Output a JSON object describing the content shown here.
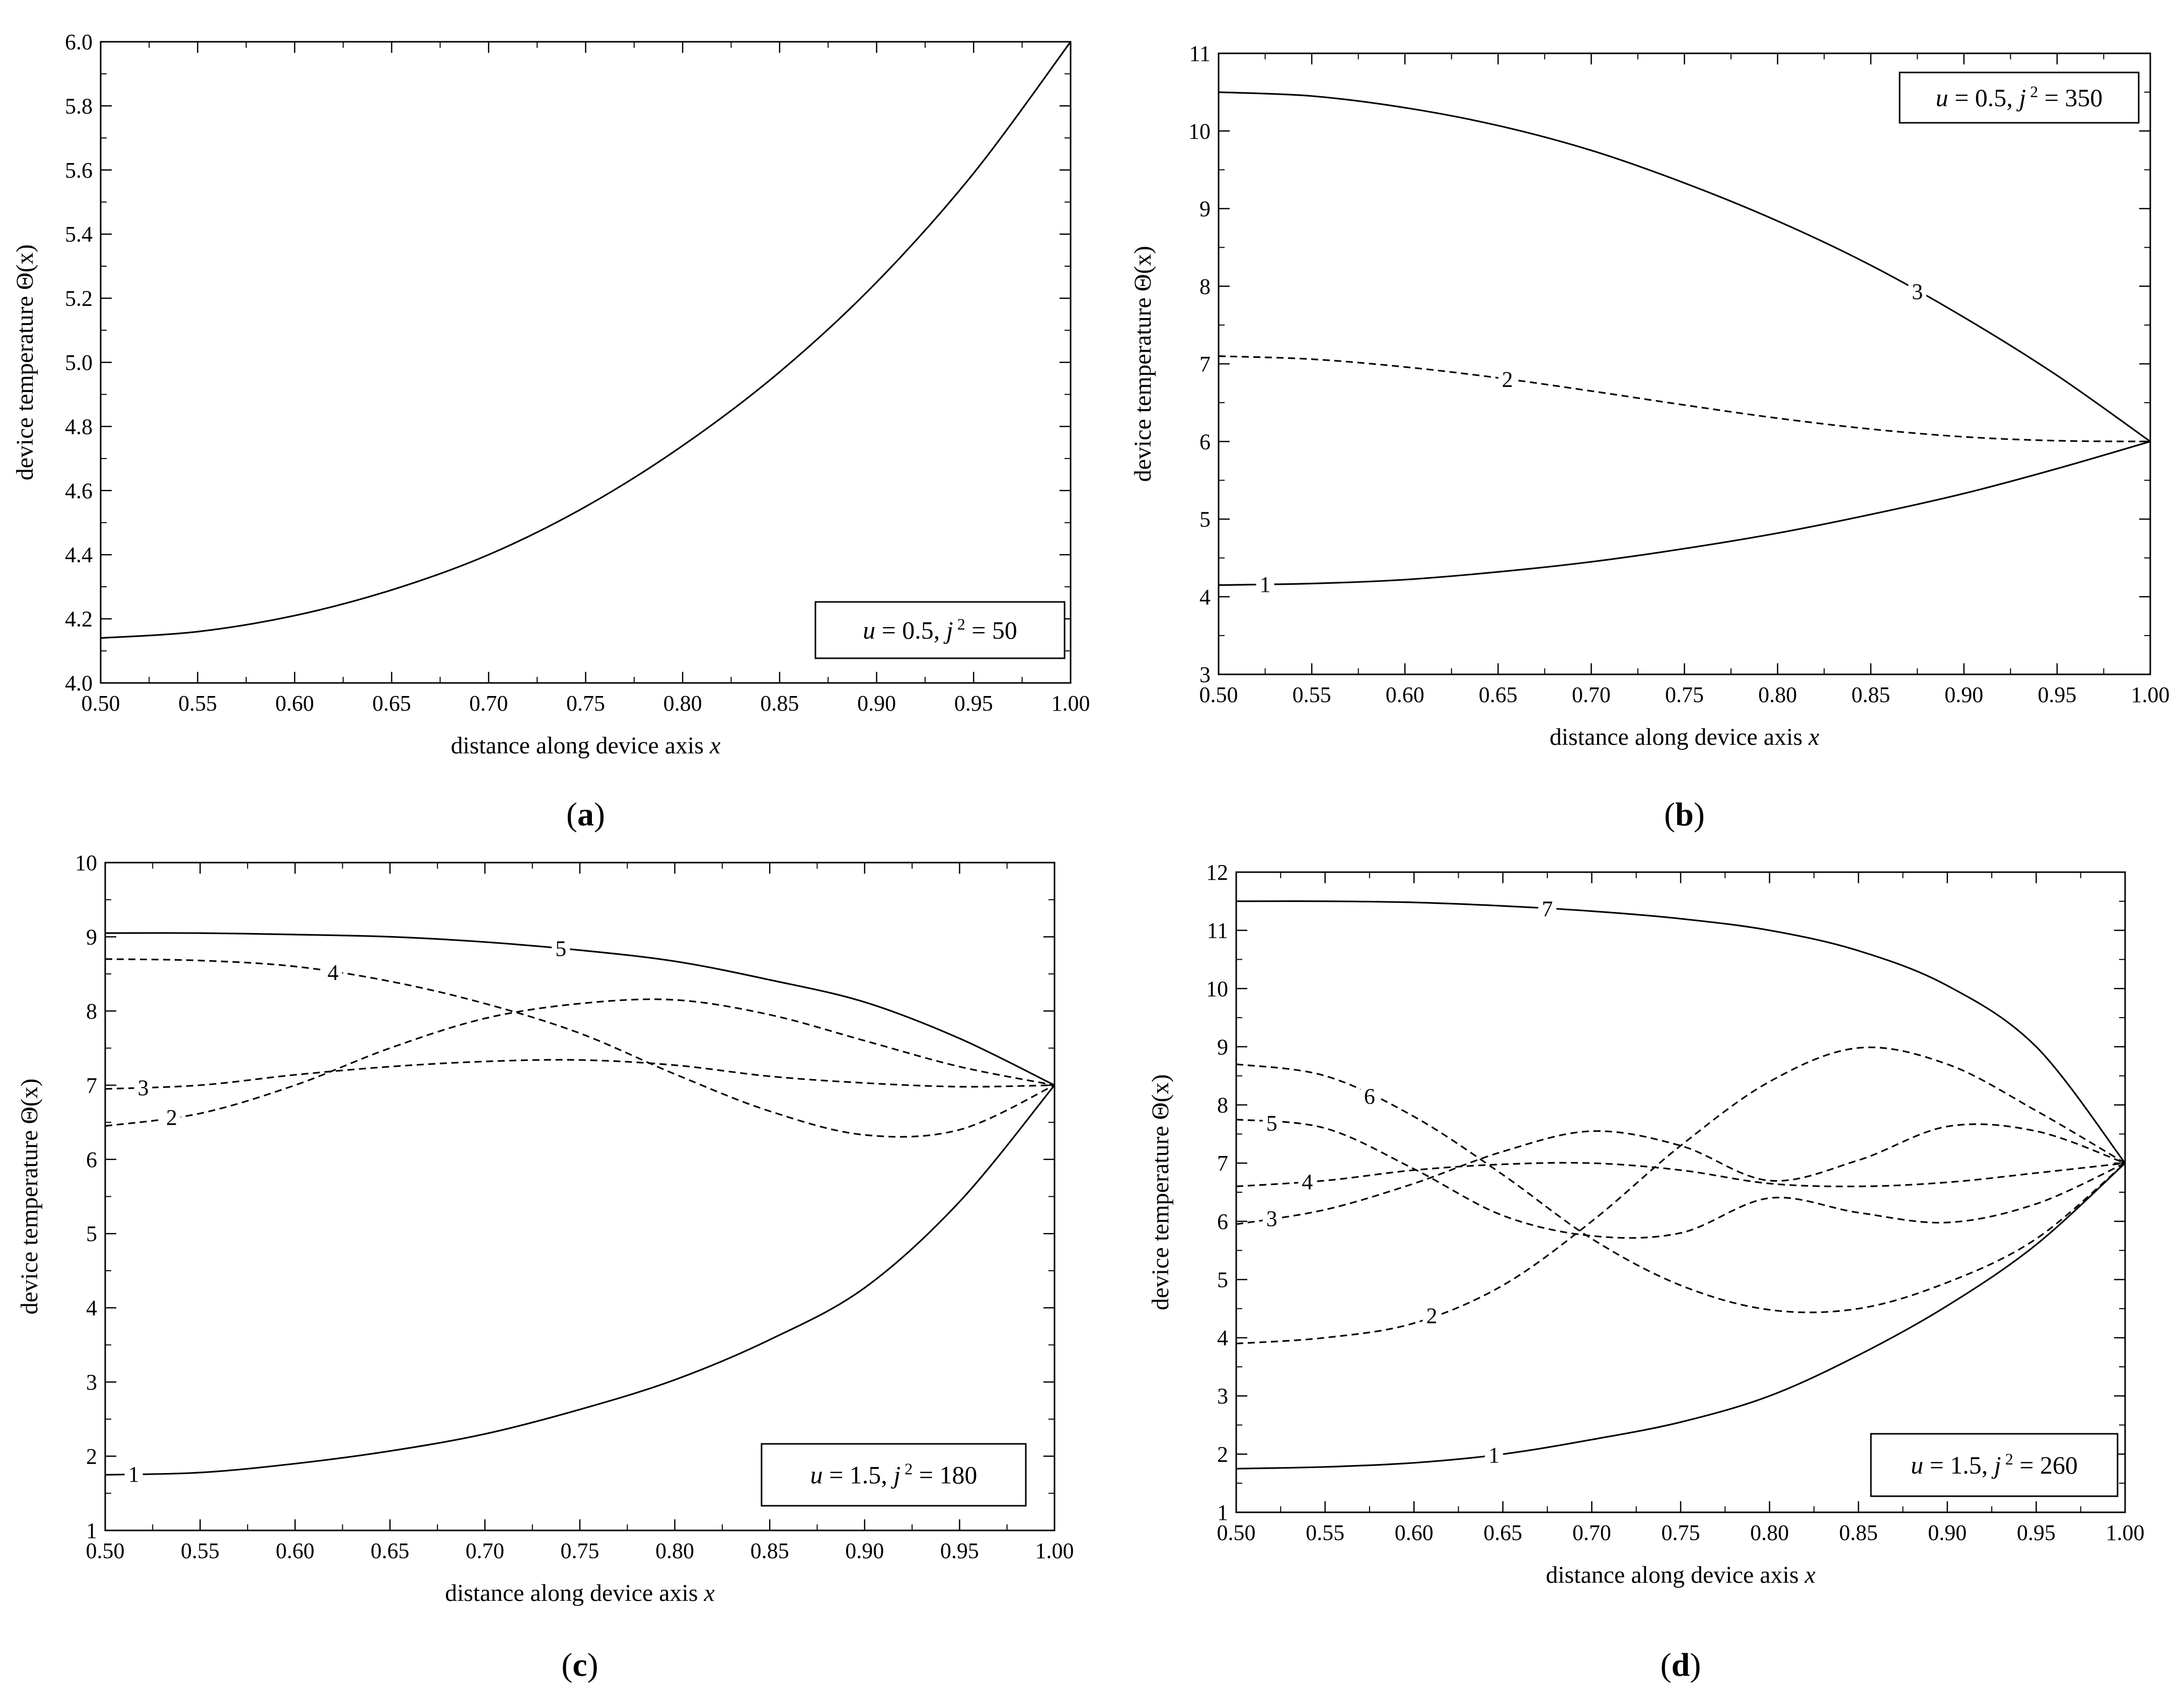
{
  "chart_data": [
    {
      "id": "a",
      "type": "line",
      "panel_label": "a",
      "xlabel": "distance along device axis",
      "xvar": "x",
      "ylabel": "device temperature",
      "yvar": "Θ(x)",
      "xlim": [
        0.5,
        1.0
      ],
      "ylim": [
        4.0,
        6.0
      ],
      "xticks": [
        "0.50",
        "0.55",
        "0.60",
        "0.65",
        "0.70",
        "0.75",
        "0.80",
        "0.85",
        "0.90",
        "0.95",
        "1.00"
      ],
      "yticks": [
        "4.0",
        "4.2",
        "4.4",
        "4.6",
        "4.8",
        "5.0",
        "5.2",
        "5.4",
        "5.6",
        "5.8",
        "6.0"
      ],
      "legend": {
        "u": "0.5",
        "j2": "50",
        "position": "bottom-right"
      },
      "series": [
        {
          "name": "",
          "style": "solid",
          "x": [
            0.5,
            0.55,
            0.6,
            0.65,
            0.7,
            0.75,
            0.8,
            0.85,
            0.9,
            0.95,
            1.0
          ],
          "y": [
            4.14,
            4.16,
            4.21,
            4.29,
            4.4,
            4.55,
            4.74,
            4.97,
            5.25,
            5.59,
            6.0
          ]
        }
      ]
    },
    {
      "id": "b",
      "type": "line",
      "panel_label": "b",
      "xlabel": "distance along device axis",
      "xvar": "x",
      "ylabel": "device temperature",
      "yvar": "Θ(x)",
      "xlim": [
        0.5,
        1.0
      ],
      "ylim": [
        3,
        11
      ],
      "xticks": [
        "0.50",
        "0.55",
        "0.60",
        "0.65",
        "0.70",
        "0.75",
        "0.80",
        "0.85",
        "0.90",
        "0.95",
        "1.00"
      ],
      "yticks": [
        "3",
        "4",
        "5",
        "6",
        "7",
        "8",
        "9",
        "10",
        "11"
      ],
      "legend": {
        "u": "0.5",
        "j2": "350",
        "position": "top-right"
      },
      "series": [
        {
          "name": "1",
          "style": "solid",
          "label_at": 0.525,
          "x": [
            0.5,
            0.55,
            0.6,
            0.65,
            0.7,
            0.75,
            0.8,
            0.85,
            0.9,
            0.95,
            1.0
          ],
          "y": [
            4.15,
            4.17,
            4.22,
            4.32,
            4.45,
            4.62,
            4.82,
            5.06,
            5.33,
            5.65,
            6.0
          ]
        },
        {
          "name": "2",
          "style": "dashed",
          "label_at": 0.655,
          "x": [
            0.5,
            0.55,
            0.6,
            0.65,
            0.7,
            0.75,
            0.8,
            0.85,
            0.9,
            0.95,
            1.0
          ],
          "y": [
            7.1,
            7.06,
            6.96,
            6.82,
            6.65,
            6.47,
            6.3,
            6.16,
            6.06,
            6.01,
            6.0
          ]
        },
        {
          "name": "3",
          "style": "solid",
          "label_at": 0.875,
          "x": [
            0.5,
            0.55,
            0.6,
            0.65,
            0.7,
            0.75,
            0.8,
            0.85,
            0.9,
            0.95,
            1.0
          ],
          "y": [
            10.5,
            10.45,
            10.3,
            10.07,
            9.75,
            9.33,
            8.84,
            8.27,
            7.6,
            6.85,
            6.0
          ]
        }
      ]
    },
    {
      "id": "c",
      "type": "line",
      "panel_label": "c",
      "xlabel": "distance along device axis",
      "xvar": "x",
      "ylabel": "device temperature",
      "yvar": "Θ(x)",
      "xlim": [
        0.5,
        1.0
      ],
      "ylim": [
        1,
        10
      ],
      "xticks": [
        "0.50",
        "0.55",
        "0.60",
        "0.65",
        "0.70",
        "0.75",
        "0.80",
        "0.85",
        "0.90",
        "0.95",
        "1.00"
      ],
      "yticks": [
        "1",
        "2",
        "3",
        "4",
        "5",
        "6",
        "7",
        "8",
        "9",
        "10"
      ],
      "legend": {
        "u": "1.5",
        "j2": "180",
        "position": "bottom-right"
      },
      "series": [
        {
          "name": "1",
          "style": "solid",
          "label_at": 0.515,
          "x": [
            0.5,
            0.55,
            0.6,
            0.65,
            0.7,
            0.75,
            0.8,
            0.85,
            0.9,
            0.95,
            1.0
          ],
          "y": [
            1.75,
            1.78,
            1.9,
            2.07,
            2.3,
            2.63,
            3.03,
            3.57,
            4.27,
            5.43,
            7.0
          ]
        },
        {
          "name": "2",
          "style": "dashed",
          "label_at": 0.535,
          "x": [
            0.5,
            0.55,
            0.6,
            0.65,
            0.7,
            0.75,
            0.8,
            0.85,
            0.9,
            0.95,
            1.0
          ],
          "y": [
            6.45,
            6.62,
            7.0,
            7.5,
            7.9,
            8.1,
            8.15,
            7.95,
            7.6,
            7.25,
            7.0
          ]
        },
        {
          "name": "3",
          "style": "dashed",
          "label_at": 0.52,
          "x": [
            0.5,
            0.55,
            0.6,
            0.65,
            0.7,
            0.75,
            0.8,
            0.85,
            0.9,
            0.95,
            1.0
          ],
          "y": [
            6.95,
            7.0,
            7.14,
            7.25,
            7.32,
            7.34,
            7.27,
            7.12,
            7.03,
            6.98,
            7.0
          ]
        },
        {
          "name": "4",
          "style": "dashed",
          "label_at": 0.62,
          "x": [
            0.5,
            0.55,
            0.6,
            0.65,
            0.7,
            0.75,
            0.8,
            0.85,
            0.9,
            0.95,
            1.0
          ],
          "y": [
            8.7,
            8.68,
            8.6,
            8.4,
            8.1,
            7.7,
            7.15,
            6.65,
            6.33,
            6.4,
            7.0
          ]
        },
        {
          "name": "5",
          "style": "solid",
          "label_at": 0.74,
          "x": [
            0.5,
            0.55,
            0.6,
            0.65,
            0.7,
            0.75,
            0.8,
            0.85,
            0.9,
            0.95,
            1.0
          ],
          "y": [
            9.05,
            9.05,
            9.03,
            9.0,
            8.93,
            8.82,
            8.67,
            8.42,
            8.12,
            7.63,
            7.0
          ]
        }
      ]
    },
    {
      "id": "d",
      "type": "line",
      "panel_label": "d",
      "xlabel": "distance along device axis",
      "xvar": "x",
      "ylabel": "device temperature",
      "yvar": "Θ(x)",
      "xlim": [
        0.5,
        1.0
      ],
      "ylim": [
        1,
        12
      ],
      "xticks": [
        "0.50",
        "0.55",
        "0.60",
        "0.65",
        "0.70",
        "0.75",
        "0.80",
        "0.85",
        "0.90",
        "0.95",
        "1.00"
      ],
      "yticks": [
        "1",
        "2",
        "3",
        "4",
        "5",
        "6",
        "7",
        "8",
        "9",
        "10",
        "11",
        "12"
      ],
      "legend": {
        "u": "1.5",
        "j2": "260",
        "position": "bottom-right"
      },
      "series": [
        {
          "name": "1",
          "style": "solid",
          "label_at": 0.645,
          "x": [
            0.5,
            0.55,
            0.6,
            0.65,
            0.7,
            0.75,
            0.8,
            0.85,
            0.9,
            0.95,
            1.0
          ],
          "y": [
            1.75,
            1.78,
            1.85,
            2.0,
            2.25,
            2.55,
            3.0,
            3.7,
            4.55,
            5.6,
            7.0
          ]
        },
        {
          "name": "2",
          "style": "dashed",
          "label_at": 0.61,
          "x": [
            0.5,
            0.55,
            0.6,
            0.65,
            0.7,
            0.75,
            0.8,
            0.85,
            0.9,
            0.95,
            1.0
          ],
          "y": [
            3.9,
            4.0,
            4.25,
            4.9,
            6.0,
            7.3,
            8.4,
            8.98,
            8.7,
            7.9,
            7.0
          ]
        },
        {
          "name": "3",
          "style": "dashed",
          "label_at": 0.52,
          "x": [
            0.5,
            0.55,
            0.6,
            0.65,
            0.7,
            0.75,
            0.8,
            0.85,
            0.9,
            0.95,
            1.0
          ],
          "y": [
            5.95,
            6.2,
            6.65,
            7.2,
            7.55,
            7.3,
            6.7,
            7.05,
            7.63,
            7.55,
            7.0
          ]
        },
        {
          "name": "4",
          "style": "dashed",
          "label_at": 0.54,
          "x": [
            0.5,
            0.55,
            0.6,
            0.65,
            0.7,
            0.75,
            0.8,
            0.85,
            0.9,
            0.95,
            1.0
          ],
          "y": [
            6.6,
            6.7,
            6.88,
            6.98,
            7.0,
            6.88,
            6.65,
            6.6,
            6.67,
            6.83,
            7.0
          ]
        },
        {
          "name": "5",
          "style": "dashed",
          "label_at": 0.52,
          "x": [
            0.5,
            0.55,
            0.6,
            0.65,
            0.7,
            0.75,
            0.8,
            0.85,
            0.9,
            0.95,
            1.0
          ],
          "y": [
            7.75,
            7.6,
            6.9,
            6.1,
            5.75,
            5.8,
            6.4,
            6.15,
            5.98,
            6.3,
            7.0
          ]
        },
        {
          "name": "6",
          "style": "dashed",
          "label_at": 0.575,
          "x": [
            0.5,
            0.55,
            0.6,
            0.65,
            0.7,
            0.75,
            0.8,
            0.85,
            0.9,
            0.95,
            1.0
          ],
          "y": [
            8.7,
            8.5,
            7.8,
            6.8,
            5.7,
            4.9,
            4.48,
            4.5,
            4.95,
            5.7,
            7.0
          ]
        },
        {
          "name": "7",
          "style": "solid",
          "label_at": 0.675,
          "x": [
            0.5,
            0.55,
            0.6,
            0.65,
            0.7,
            0.75,
            0.8,
            0.85,
            0.9,
            0.95,
            1.0
          ],
          "y": [
            11.5,
            11.5,
            11.48,
            11.42,
            11.33,
            11.2,
            11.0,
            10.65,
            10.05,
            9.0,
            7.0
          ]
        }
      ]
    }
  ]
}
